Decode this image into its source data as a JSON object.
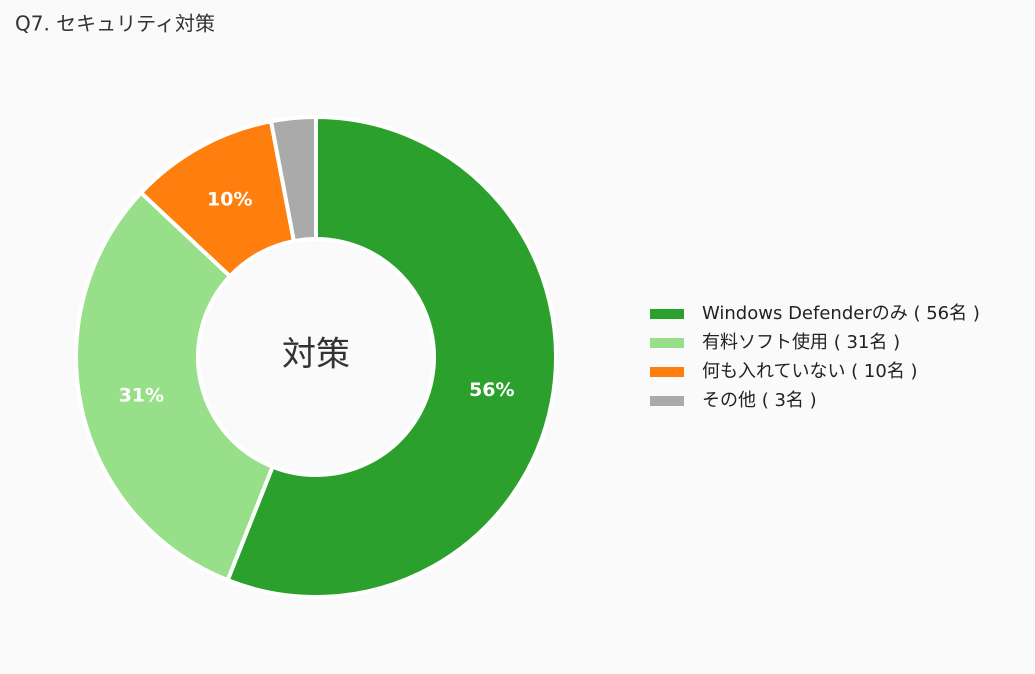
{
  "chart_data": {
    "type": "donut",
    "title": "Q7. セキュリティ対策",
    "center_label": "対策",
    "categories": [
      "Windows Defenderのみ ( 56名 )",
      "有料ソフト使用 ( 31名 )",
      "何も入れていない ( 10名 )",
      "その他 ( 3名 )"
    ],
    "values": [
      56,
      31,
      10,
      3
    ],
    "value_labels": [
      "56%",
      "31%",
      "10%",
      null
    ],
    "colors": [
      "#2ca02c",
      "#98df8a",
      "#ff7f0e",
      "#aaaaaa"
    ],
    "legend": "right"
  }
}
